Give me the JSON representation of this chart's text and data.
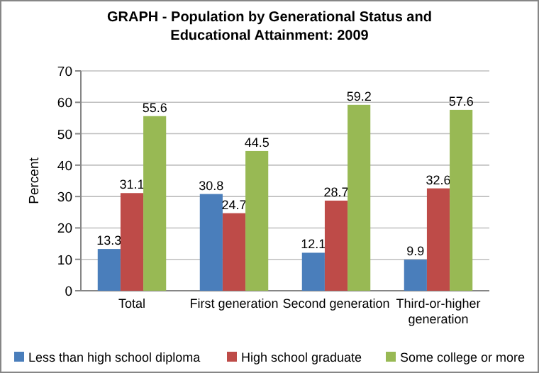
{
  "chart_data": {
    "type": "bar",
    "title": "GRAPH - Population by Generational Status and Educational Attainment: 2009",
    "ylabel": "Percent",
    "categories": [
      "Total",
      "First generation",
      "Second generation",
      "Third-or-higher generation"
    ],
    "series": [
      {
        "name": "Less than high school diploma",
        "color": "#4a7ebb",
        "values": [
          13.3,
          30.8,
          12.1,
          9.9
        ]
      },
      {
        "name": "High school graduate",
        "color": "#be4b48",
        "values": [
          31.1,
          24.7,
          28.7,
          32.6
        ]
      },
      {
        "name": "Some college or more",
        "color": "#98b954",
        "values": [
          55.6,
          44.5,
          59.2,
          57.6
        ]
      }
    ],
    "ylim": [
      0,
      70
    ],
    "yticks": [
      0,
      10,
      20,
      30,
      40,
      50,
      60,
      70
    ],
    "grid": "y",
    "legend": "bottom",
    "data_labels": true
  }
}
